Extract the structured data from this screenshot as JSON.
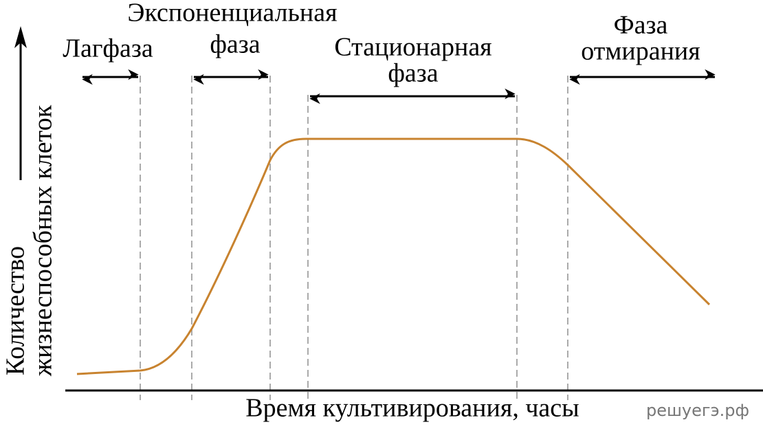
{
  "phases": [
    {
      "lines": [
        "Лагфаза"
      ]
    },
    {
      "lines": [
        "Экспоненциальная",
        "фаза"
      ]
    },
    {
      "lines": [
        "Стационарная",
        "фаза"
      ]
    },
    {
      "lines": [
        "Фаза",
        "отмирания"
      ]
    }
  ],
  "y_axis": {
    "lines": [
      "Количество",
      "жизнеспособных клеток"
    ]
  },
  "x_axis": {
    "label": "Время культивирования, часы"
  },
  "watermark": "решуегэ.рф"
}
